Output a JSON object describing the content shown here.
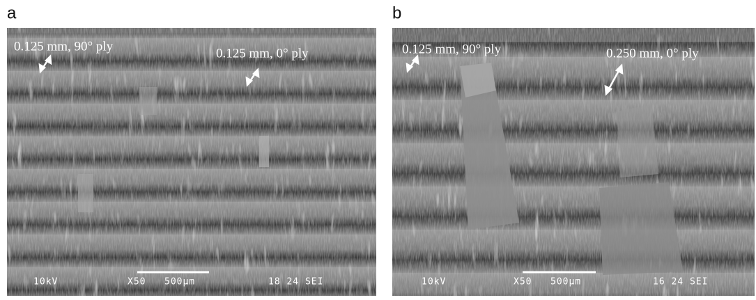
{
  "panels": [
    {
      "label": "a",
      "annotations": [
        "0.125 mm, 90° ply",
        "0.125 mm, 0° ply"
      ],
      "info_bar": {
        "voltage": "10kV",
        "magnification": "X50",
        "scale": "500μm",
        "code": "18 24 SEI"
      }
    },
    {
      "label": "b",
      "annotations": [
        "0.125 mm, 90° ply",
        "0.250 mm, 0° ply"
      ],
      "info_bar": {
        "voltage": "10kV",
        "magnification": "X50",
        "scale": "500μm",
        "code": "16 24 SEI"
      }
    }
  ]
}
